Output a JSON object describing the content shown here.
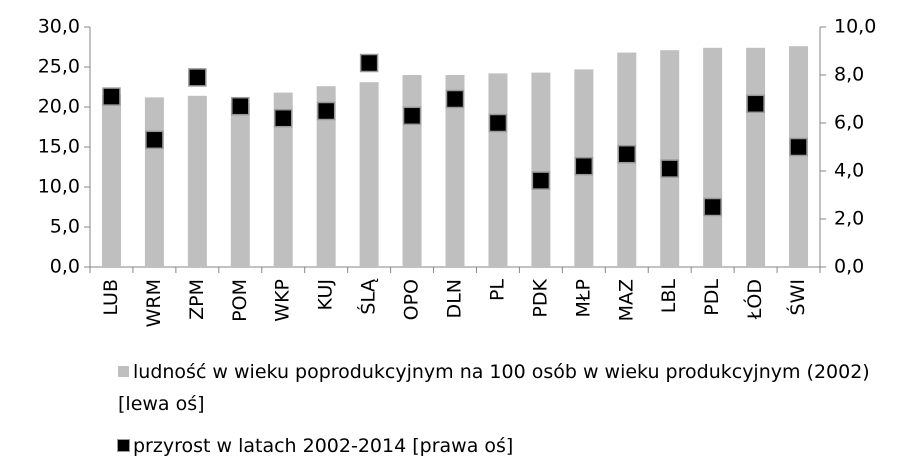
{
  "chart_data": {
    "type": "bar",
    "categories": [
      "LUB",
      "WRM",
      "ZPM",
      "POM",
      "WKP",
      "KUJ",
      "ŚLĄ",
      "OPO",
      "DLN",
      "PL",
      "PDK",
      "MŁP",
      "MAZ",
      "LBL",
      "PDL",
      "ŁÓD",
      "ŚWI"
    ],
    "series": [
      {
        "name": "ludność w wieku poprodukcyjnym na 100 osób w wieku produkcyjnym (2002) [lewa oś]",
        "type": "bar",
        "color": "#bfbfbf",
        "values": [
          21.5,
          21.2,
          21.4,
          20.5,
          21.8,
          22.6,
          23.1,
          24.0,
          24.0,
          24.2,
          24.3,
          24.7,
          26.8,
          27.1,
          27.4,
          27.4,
          27.6
        ]
      },
      {
        "name": "przyrost w latach 2002-2014 [prawa oś]",
        "type": "scatter",
        "axis": "y2",
        "color": "#000000",
        "values": [
          7.1,
          5.3,
          7.9,
          6.7,
          6.2,
          6.5,
          8.5,
          6.3,
          7.0,
          6.0,
          3.6,
          4.2,
          4.7,
          4.1,
          2.5,
          6.8,
          5.0
        ]
      }
    ],
    "ylim": [
      0,
      30
    ],
    "yticks": [
      {
        "value": 0,
        "label": "0,0"
      },
      {
        "value": 5,
        "label": "5,0"
      },
      {
        "value": 10,
        "label": "10,0"
      },
      {
        "value": 15,
        "label": "15,0"
      },
      {
        "value": 20,
        "label": "20,0"
      },
      {
        "value": 25,
        "label": "25,0"
      },
      {
        "value": 30,
        "label": "30,0"
      }
    ],
    "y2lim": [
      0,
      10
    ],
    "y2ticks": [
      {
        "value": 0,
        "label": "0,0"
      },
      {
        "value": 2,
        "label": "2,0"
      },
      {
        "value": 4,
        "label": "4,0"
      },
      {
        "value": 6,
        "label": "6,0"
      },
      {
        "value": 8,
        "label": "8,0"
      },
      {
        "value": 10,
        "label": "10,0"
      }
    ],
    "grid": false,
    "legend": "bottom"
  }
}
